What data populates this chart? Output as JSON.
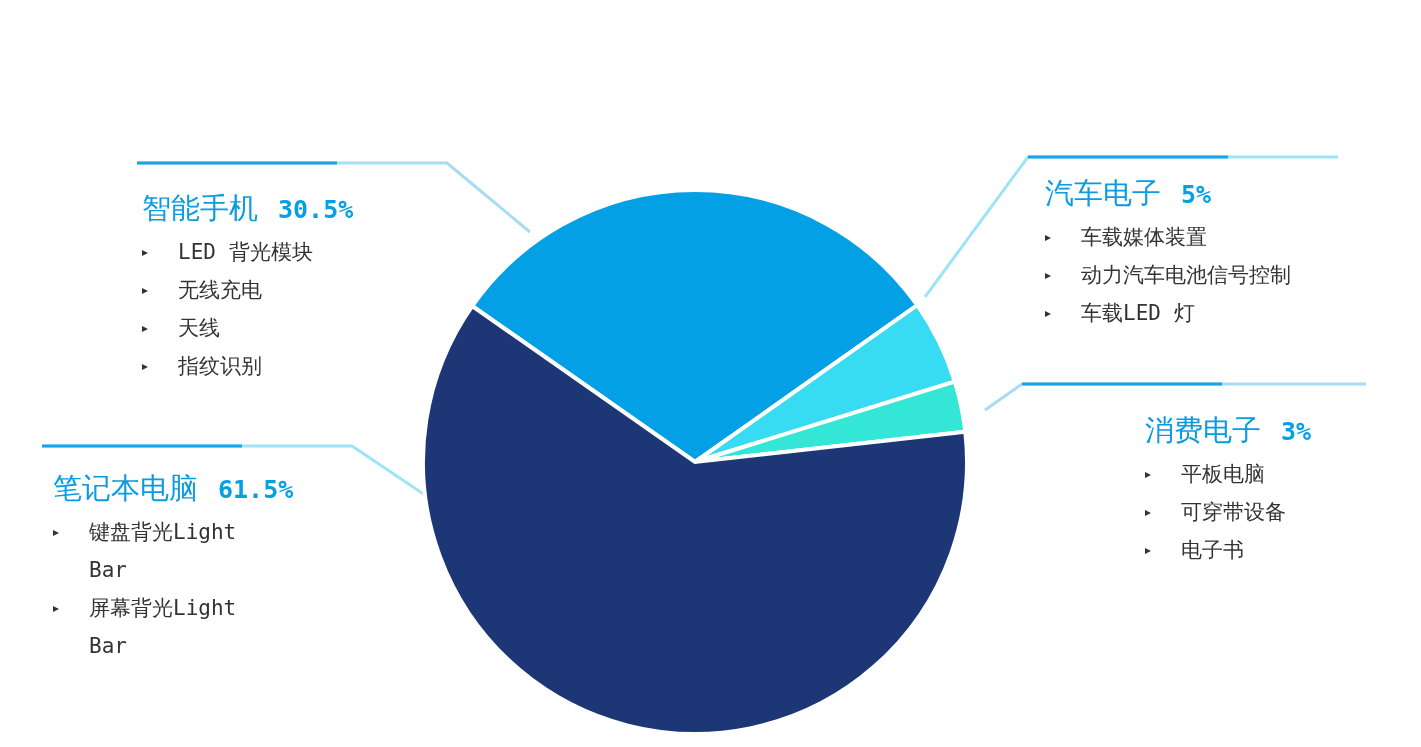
{
  "chart_data": {
    "type": "pie",
    "categories": [
      "智能手机",
      "汽车电子",
      "消费电子",
      "笔记本电脑"
    ],
    "values": [
      30.5,
      5,
      3,
      61.5
    ],
    "value_labels": [
      "30.5%",
      "5%",
      "3%",
      "61.5%"
    ],
    "colors": [
      "#04a0e6",
      "#38dcf2",
      "#34e6d6",
      "#1c3676"
    ],
    "annotations": [
      "LED 背光模块",
      "无线充电",
      "天线",
      "指纹识别",
      "车载媒体装置",
      "动力汽车电池信号控制",
      "车载LED 灯",
      "平板电脑",
      "可穿带设备",
      "电子书",
      "键盘背光Light Bar",
      "屏幕背光Light Bar"
    ],
    "legend": false
  }
}
